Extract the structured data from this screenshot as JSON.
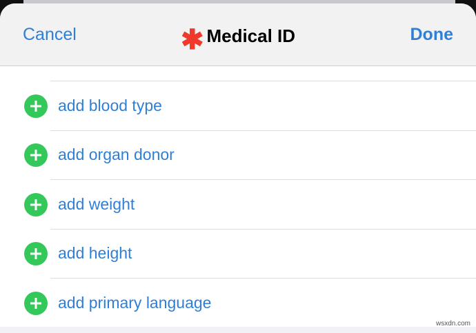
{
  "header": {
    "cancel_label": "Cancel",
    "title": "Medical ID",
    "title_icon": "asterisk-icon",
    "done_label": "Done",
    "accent": "#2f7fd6",
    "icon_color": "#f0392b"
  },
  "rows": [
    {
      "label": "add blood type",
      "icon": "plus-circle-icon"
    },
    {
      "label": "add organ donor",
      "icon": "plus-circle-icon"
    },
    {
      "label": "add weight",
      "icon": "plus-circle-icon"
    },
    {
      "label": "add height",
      "icon": "plus-circle-icon"
    },
    {
      "label": "add primary language",
      "icon": "plus-circle-icon"
    }
  ],
  "watermark": "wsxdn.com"
}
